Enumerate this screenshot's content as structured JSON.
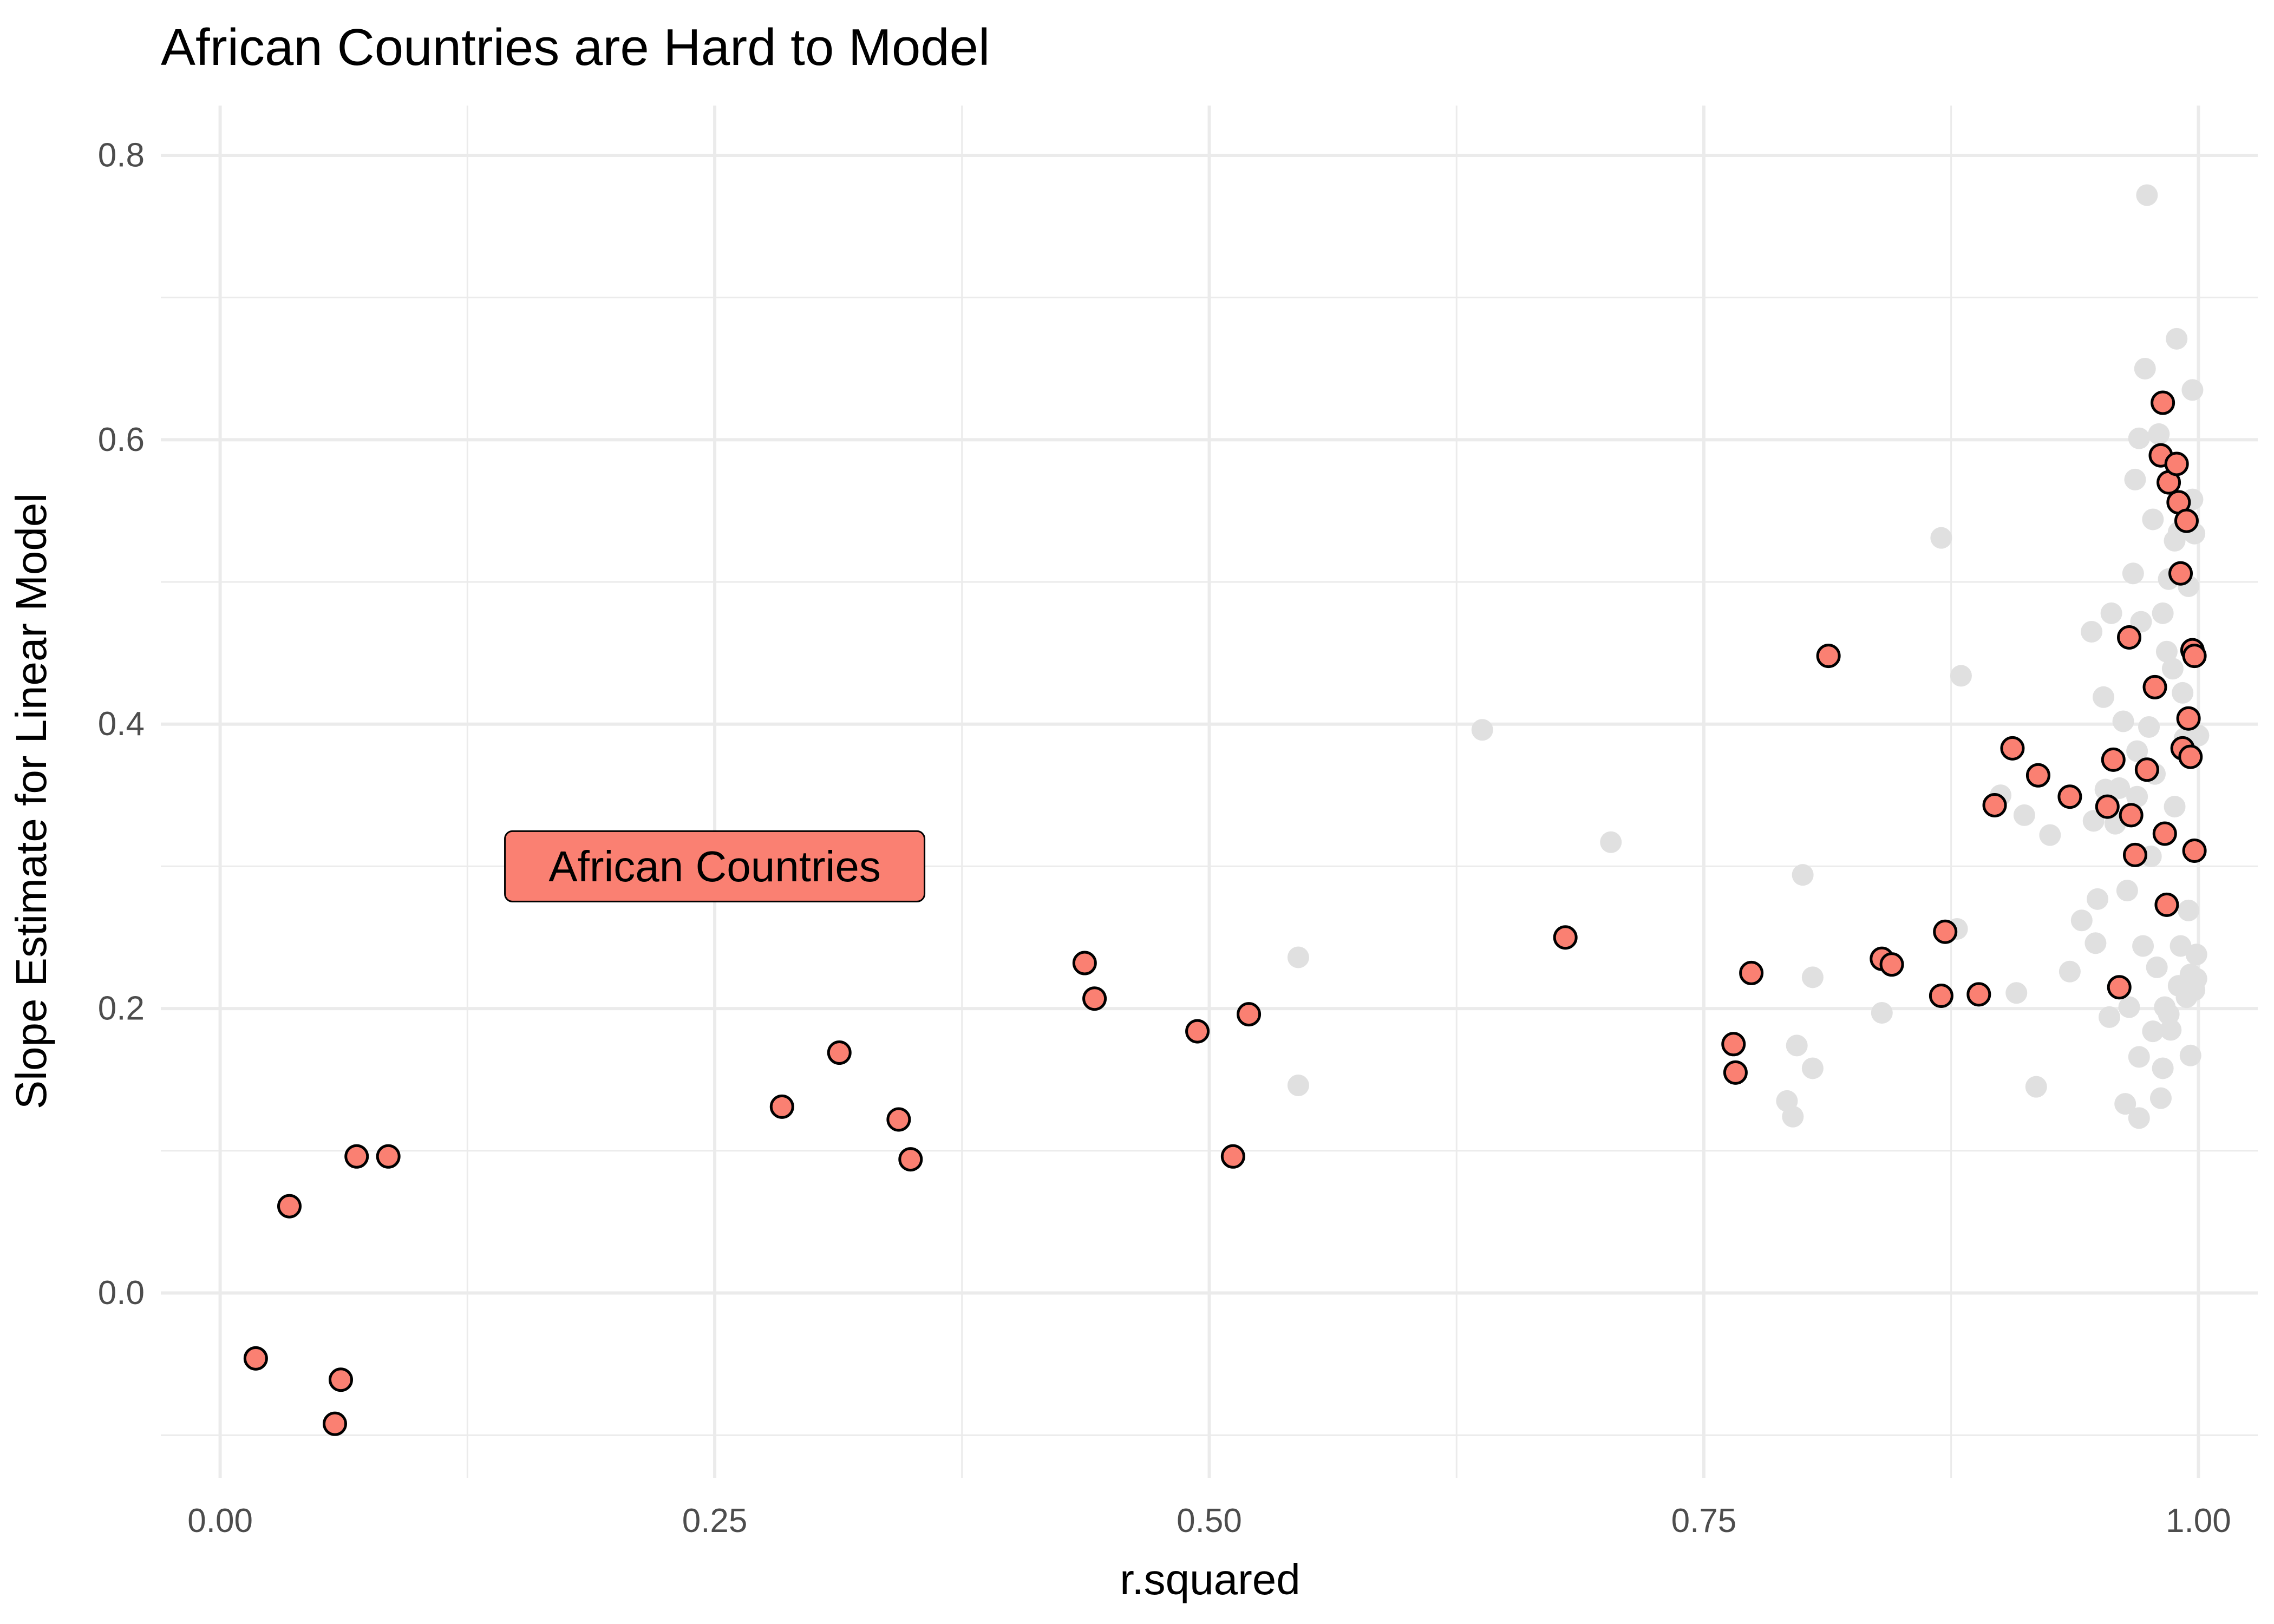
{
  "chart_data": {
    "type": "scatter",
    "title": "African Countries are Hard to Model",
    "xlabel": "r.squared",
    "ylabel": "Slope Estimate for Linear Model",
    "xlim": [
      -0.03,
      1.03
    ],
    "ylim": [
      -0.13,
      0.835
    ],
    "x_ticks": [
      0.0,
      0.25,
      0.5,
      0.75,
      1.0
    ],
    "x_tick_labels": [
      "0.00",
      "0.25",
      "0.50",
      "0.75",
      "1.00"
    ],
    "y_ticks": [
      0.0,
      0.2,
      0.4,
      0.6,
      0.8
    ],
    "y_tick_labels": [
      "0.0",
      "0.2",
      "0.4",
      "0.6",
      "0.8"
    ],
    "grid": true,
    "legend": "none",
    "colors": {
      "highlight_fill": "#fa8072",
      "highlight_stroke": "#000000",
      "other_fill": "#e0e0e0",
      "grid": "#ebebeb"
    },
    "annotation": {
      "text": "African Countries",
      "x": 0.25,
      "y": 0.3
    },
    "series": [
      {
        "role": "other countries",
        "points": [
          [
            0.638,
            0.396
          ],
          [
            0.703,
            0.317
          ],
          [
            0.545,
            0.236
          ],
          [
            0.545,
            0.146
          ],
          [
            0.87,
            0.531
          ],
          [
            0.88,
            0.434
          ],
          [
            0.8,
            0.294
          ],
          [
            0.805,
            0.222
          ],
          [
            0.805,
            0.158
          ],
          [
            0.797,
            0.174
          ],
          [
            0.792,
            0.135
          ],
          [
            0.795,
            0.124
          ],
          [
            0.84,
            0.197
          ],
          [
            0.878,
            0.256
          ],
          [
            0.908,
            0.211
          ],
          [
            0.912,
            0.336
          ],
          [
            0.918,
            0.145
          ],
          [
            0.925,
            0.322
          ],
          [
            0.935,
            0.226
          ],
          [
            0.9,
            0.35
          ],
          [
            0.941,
            0.262
          ],
          [
            0.946,
            0.465
          ],
          [
            0.947,
            0.332
          ],
          [
            0.948,
            0.246
          ],
          [
            0.949,
            0.277
          ],
          [
            0.952,
            0.419
          ],
          [
            0.953,
            0.354
          ],
          [
            0.955,
            0.194
          ],
          [
            0.956,
            0.478
          ],
          [
            0.958,
            0.33
          ],
          [
            0.96,
            0.355
          ],
          [
            0.962,
            0.402
          ],
          [
            0.963,
            0.133
          ],
          [
            0.964,
            0.283
          ],
          [
            0.965,
            0.201
          ],
          [
            0.967,
            0.506
          ],
          [
            0.968,
            0.572
          ],
          [
            0.969,
            0.349
          ],
          [
            0.969,
            0.381
          ],
          [
            0.97,
            0.166
          ],
          [
            0.97,
            0.123
          ],
          [
            0.97,
            0.601
          ],
          [
            0.971,
            0.472
          ],
          [
            0.972,
            0.244
          ],
          [
            0.973,
            0.65
          ],
          [
            0.974,
            0.772
          ],
          [
            0.975,
            0.398
          ],
          [
            0.976,
            0.307
          ],
          [
            0.977,
            0.184
          ],
          [
            0.977,
            0.544
          ],
          [
            0.978,
            0.365
          ],
          [
            0.979,
            0.229
          ],
          [
            0.98,
            0.604
          ],
          [
            0.981,
            0.137
          ],
          [
            0.982,
            0.478
          ],
          [
            0.982,
            0.158
          ],
          [
            0.983,
            0.201
          ],
          [
            0.984,
            0.451
          ],
          [
            0.984,
            0.272
          ],
          [
            0.985,
            0.196
          ],
          [
            0.985,
            0.502
          ],
          [
            0.986,
            0.185
          ],
          [
            0.987,
            0.439
          ],
          [
            0.988,
            0.342
          ],
          [
            0.988,
            0.529
          ],
          [
            0.989,
            0.671
          ],
          [
            0.99,
            0.216
          ],
          [
            0.99,
            0.535
          ],
          [
            0.991,
            0.244
          ],
          [
            0.992,
            0.422
          ],
          [
            0.992,
            0.215
          ],
          [
            0.993,
            0.39
          ],
          [
            0.994,
            0.208
          ],
          [
            0.995,
            0.269
          ],
          [
            0.995,
            0.497
          ],
          [
            0.996,
            0.224
          ],
          [
            0.996,
            0.167
          ],
          [
            0.997,
            0.635
          ],
          [
            0.997,
            0.558
          ],
          [
            0.998,
            0.534
          ],
          [
            0.998,
            0.213
          ],
          [
            0.999,
            0.238
          ],
          [
            0.999,
            0.221
          ],
          [
            1.0,
            0.392
          ]
        ]
      },
      {
        "role": "african countries",
        "points": [
          [
            0.018,
            -0.046
          ],
          [
            0.035,
            0.061
          ],
          [
            0.058,
            -0.092
          ],
          [
            0.061,
            -0.061
          ],
          [
            0.069,
            0.096
          ],
          [
            0.085,
            0.096
          ],
          [
            0.284,
            0.131
          ],
          [
            0.313,
            0.169
          ],
          [
            0.343,
            0.122
          ],
          [
            0.349,
            0.094
          ],
          [
            0.437,
            0.232
          ],
          [
            0.442,
            0.207
          ],
          [
            0.494,
            0.184
          ],
          [
            0.512,
            0.096
          ],
          [
            0.52,
            0.196
          ],
          [
            0.68,
            0.25
          ],
          [
            0.765,
            0.175
          ],
          [
            0.766,
            0.155
          ],
          [
            0.774,
            0.225
          ],
          [
            0.813,
            0.448
          ],
          [
            0.84,
            0.235
          ],
          [
            0.845,
            0.231
          ],
          [
            0.87,
            0.209
          ],
          [
            0.872,
            0.254
          ],
          [
            0.889,
            0.21
          ],
          [
            0.897,
            0.343
          ],
          [
            0.906,
            0.383
          ],
          [
            0.919,
            0.364
          ],
          [
            0.935,
            0.349
          ],
          [
            0.954,
            0.342
          ],
          [
            0.957,
            0.375
          ],
          [
            0.96,
            0.215
          ],
          [
            0.965,
            0.461
          ],
          [
            0.966,
            0.336
          ],
          [
            0.968,
            0.308
          ],
          [
            0.974,
            0.368
          ],
          [
            0.978,
            0.426
          ],
          [
            0.981,
            0.589
          ],
          [
            0.982,
            0.626
          ],
          [
            0.983,
            0.323
          ],
          [
            0.984,
            0.273
          ],
          [
            0.985,
            0.57
          ],
          [
            0.989,
            0.583
          ],
          [
            0.99,
            0.556
          ],
          [
            0.991,
            0.506
          ],
          [
            0.992,
            0.383
          ],
          [
            0.994,
            0.543
          ],
          [
            0.995,
            0.404
          ],
          [
            0.996,
            0.377
          ],
          [
            0.997,
            0.452
          ],
          [
            0.998,
            0.448
          ],
          [
            0.998,
            0.311
          ]
        ]
      }
    ]
  }
}
